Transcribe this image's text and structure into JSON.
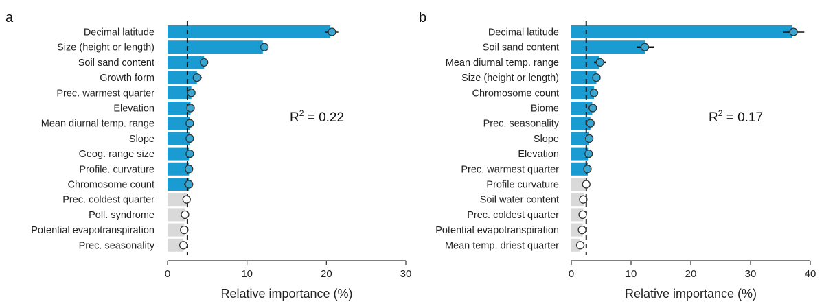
{
  "chart_data": [
    {
      "panel": "a",
      "type": "bar",
      "orientation": "horizontal",
      "categories": [
        "Decimal latitude",
        "Size (height or length)",
        "Soil sand content",
        "Growth form",
        "Prec. warmest quarter",
        "Elevation",
        "Mean diurnal temp. range",
        "Slope",
        "Geog. range size",
        "Profile. curvature",
        "Chromosome count",
        "Prec. coldest quarter",
        "Poll. syndrome",
        "Potential evapotranspiration",
        "Prec. seasonality"
      ],
      "values": [
        20.5,
        12.0,
        4.6,
        3.7,
        3.0,
        2.9,
        2.8,
        2.8,
        2.7,
        2.7,
        2.7,
        2.4,
        2.2,
        2.1,
        2.0
      ],
      "points": [
        20.7,
        12.2,
        4.6,
        3.7,
        3.0,
        2.9,
        2.8,
        2.8,
        2.8,
        2.7,
        2.7,
        2.4,
        2.2,
        2.1,
        2.0
      ],
      "error_low": [
        19.8,
        11.7,
        4.2,
        3.2,
        2.5,
        2.5,
        2.4,
        2.5,
        2.4,
        2.4,
        2.1,
        2.2,
        2.0,
        1.9,
        1.8
      ],
      "error_high": [
        21.5,
        12.6,
        5.0,
        4.3,
        3.3,
        3.1,
        3.1,
        3.0,
        3.0,
        2.9,
        3.1,
        2.7,
        2.5,
        2.4,
        2.3
      ],
      "significant": [
        true,
        true,
        true,
        true,
        true,
        true,
        true,
        true,
        true,
        true,
        true,
        false,
        false,
        false,
        false
      ],
      "threshold": 2.5,
      "xlabel": "Relative importance (%)",
      "xlim": [
        0,
        30
      ],
      "xticks": [
        0,
        10,
        20,
        30
      ],
      "annotation": {
        "text": "R",
        "sup": "2",
        "suffix": " = 0.22"
      }
    },
    {
      "panel": "b",
      "type": "bar",
      "orientation": "horizontal",
      "categories": [
        "Decimal latitude",
        "Soil sand content",
        "Mean diurnal temp. range",
        "Size (height or length)",
        "Chromosome count",
        "Biome",
        "Prec. seasonality",
        "Slope",
        "Elevation",
        "Prec. warmest quarter",
        "Profile curvature",
        "Soil water content",
        "Prec. coldest quarter",
        "Potential evapotranspiration",
        "Mean temp. driest quarter"
      ],
      "values": [
        37.0,
        12.3,
        4.7,
        4.2,
        3.8,
        3.5,
        3.2,
        3.0,
        2.9,
        2.8,
        2.3,
        2.1,
        2.0,
        1.9,
        1.5
      ],
      "points": [
        37.2,
        12.3,
        4.8,
        4.2,
        3.8,
        3.6,
        3.2,
        3.0,
        2.9,
        2.7,
        2.5,
        2.0,
        1.9,
        1.8,
        1.5
      ],
      "error_low": [
        35.5,
        11.0,
        3.8,
        3.5,
        3.2,
        2.8,
        2.7,
        2.6,
        2.5,
        2.4,
        2.2,
        1.8,
        1.7,
        1.6,
        1.3
      ],
      "error_high": [
        39.0,
        13.8,
        5.8,
        4.7,
        4.3,
        4.1,
        3.6,
        3.3,
        3.2,
        3.0,
        2.8,
        2.3,
        2.2,
        2.1,
        1.8
      ],
      "significant": [
        true,
        true,
        true,
        true,
        true,
        true,
        true,
        true,
        true,
        true,
        false,
        false,
        false,
        false,
        false
      ],
      "threshold": 2.5,
      "xlabel": "Relative importance (%)",
      "xlim": [
        0,
        40
      ],
      "xticks": [
        0,
        10,
        20,
        30,
        40
      ],
      "annotation": {
        "text": "R",
        "sup": "2",
        "suffix": " = 0.17"
      }
    }
  ],
  "colors": {
    "significant_bar": "#1a9bd1",
    "nonsignificant_bar": "#d9d9d9",
    "point_fill_significant": "#3aa6d2",
    "point_fill_nonsignificant": "#ffffff",
    "point_stroke": "#333333",
    "error_bar": "#111111",
    "threshold_line": "#111111",
    "axis": "#333333",
    "text": "#222222"
  }
}
